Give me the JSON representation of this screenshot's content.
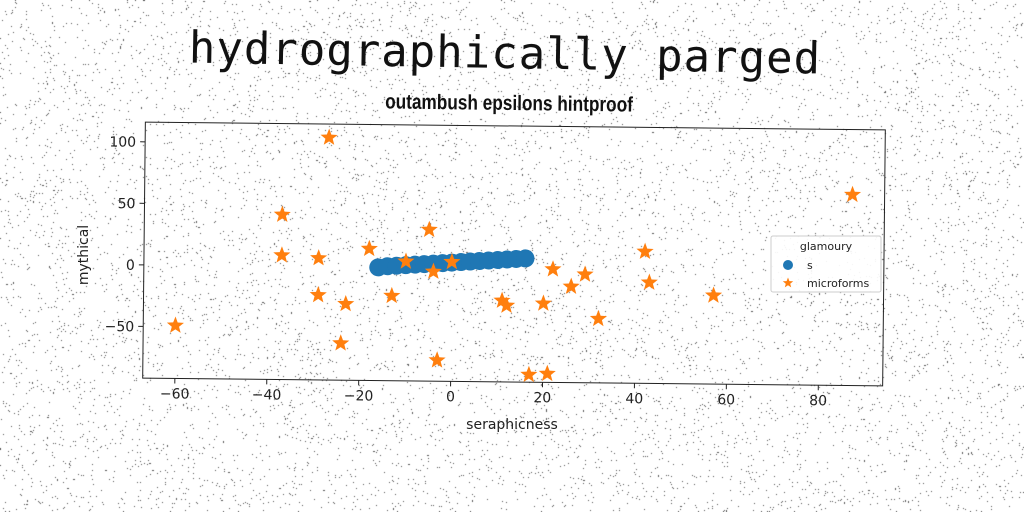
{
  "title": "hydrographically parged",
  "chart_data": {
    "type": "scatter",
    "title": "outambush epsilons hintproof",
    "xlabel": "seraphicness",
    "ylabel": "mythical",
    "xlim": [
      -67,
      94
    ],
    "ylim": [
      -92,
      116
    ],
    "x_ticks": [
      -60,
      -40,
      -20,
      0,
      20,
      40,
      60,
      80
    ],
    "y_ticks": [
      -50,
      0,
      50,
      100
    ],
    "grid": false,
    "legend": {
      "title": "glamoury",
      "placement": "right"
    },
    "series": [
      {
        "name": "s",
        "marker": "circle",
        "color": "#1f77b4",
        "x": [
          -16,
          -14,
          -12,
          -10,
          -8,
          -6,
          -4,
          -2,
          0,
          2,
          4,
          6,
          8,
          10,
          12,
          14,
          16
        ],
        "y": [
          0,
          1,
          1.5,
          2,
          2.5,
          3,
          3.5,
          4,
          4.5,
          5,
          5.5,
          6,
          6.5,
          7,
          7.5,
          8,
          8.5
        ]
      },
      {
        "name": "microforms",
        "marker": "star",
        "color": "#ff7f0e",
        "x": [
          -27,
          -37,
          -5,
          -18,
          -37,
          -10,
          0,
          -29,
          -4,
          42,
          87,
          22,
          29,
          26,
          43,
          -29,
          -13,
          11,
          20,
          -23,
          12,
          57,
          32,
          -60,
          -24,
          -3,
          21,
          17
        ],
        "y": [
          105,
          42,
          31,
          15,
          9,
          5,
          5,
          7,
          -3,
          15,
          63,
          0,
          -4,
          -14,
          -10,
          -23,
          -23,
          -26,
          -28,
          -30,
          -30,
          -20,
          -40,
          -49,
          -62,
          -75,
          -85,
          -86
        ]
      }
    ]
  }
}
